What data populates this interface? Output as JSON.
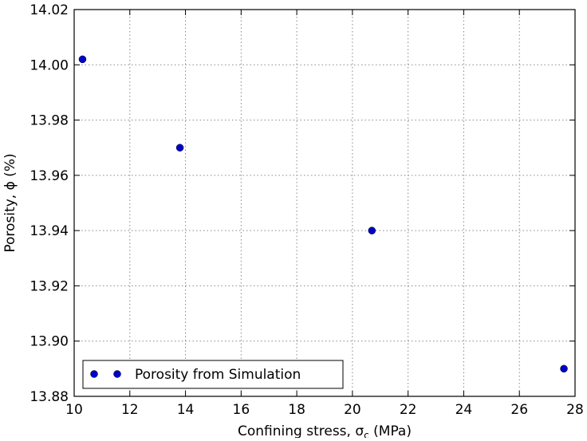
{
  "chart_data": {
    "type": "scatter",
    "title": "",
    "xlabel": "Confining stress, σ",
    "xlabel_sub": "c",
    "xlabel_suffix": " (MPa)",
    "ylabel": "Porosity, ϕ (%)",
    "xlim": [
      10,
      28
    ],
    "ylim": [
      13.88,
      14.02
    ],
    "xticks": [
      10,
      12,
      14,
      16,
      18,
      20,
      22,
      24,
      26,
      28
    ],
    "xtick_labels": [
      "10",
      "12",
      "14",
      "16",
      "18",
      "20",
      "22",
      "24",
      "26",
      "28"
    ],
    "yticks": [
      13.88,
      13.9,
      13.92,
      13.94,
      13.96,
      13.98,
      14.0,
      14.02
    ],
    "ytick_labels": [
      "13.88",
      "13.90",
      "13.92",
      "13.94",
      "13.96",
      "13.98",
      "14.00",
      "14.02"
    ],
    "grid": true,
    "legend_position": "lower-left",
    "series": [
      {
        "name": "Porosity from Simulation",
        "color": "#0000cc",
        "marker": "circle",
        "x": [
          10.3,
          13.8,
          20.7,
          27.6
        ],
        "y": [
          14.002,
          13.97,
          13.94,
          13.89
        ]
      }
    ]
  }
}
